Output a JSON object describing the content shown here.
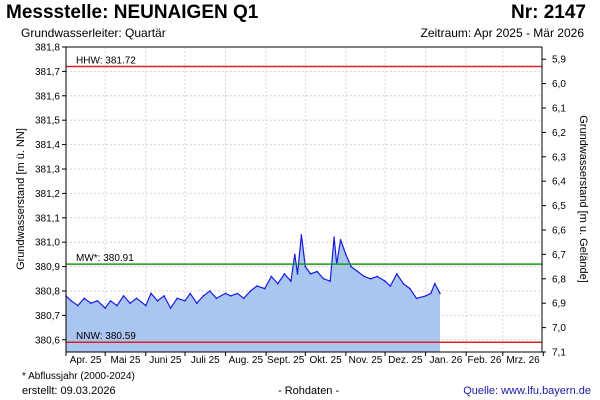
{
  "header": {
    "title": "Messstelle: NEUNAIGEN Q1",
    "number": "Nr: 2147",
    "aquifer": "Grundwasserleiter: Quartär",
    "period": "Zeitraum: Apr 2025 - Mär 2026"
  },
  "footer": {
    "footnote": "* Abflussjahr (2000-2024)",
    "created": "erstellt:  09.03.2026",
    "rawdata": "- Rohdaten -",
    "source": "Quelle: www.lfu.bayern.de"
  },
  "chart_data": {
    "type": "area",
    "ylabel_left": "Grundwasserstand [m ü. NN]",
    "ylabel_right": "Grundwasserstand [m u. Gelände]",
    "ylim": [
      380.55,
      381.8
    ],
    "yticks_left": [
      "381,8",
      "381,7",
      "381,6",
      "381,5",
      "381,4",
      "381,3",
      "381,2",
      "381,1",
      "381,0",
      "380,9",
      "380,8",
      "380,7",
      "380,6"
    ],
    "yticks_right": [
      "5,9",
      "6,0",
      "6,1",
      "6,2",
      "6,3",
      "6,4",
      "6,5",
      "6,6",
      "6,7",
      "6,8",
      "6,9",
      "7,0",
      "7,1"
    ],
    "xlim": [
      "2025-04-01",
      "2026-03-31"
    ],
    "month_labels": [
      "Apr. 25",
      "Mai 25",
      "Juni 25",
      "Juli 25",
      "Aug. 25",
      "Sept. 25",
      "Okt. 25",
      "Nov. 25",
      "Dez. 25",
      "Jan. 26",
      "Feb. 26",
      "Mrz. 26"
    ],
    "grid": true,
    "reference_lines": [
      {
        "label": "HHW: 381.72",
        "value": 381.72,
        "color": "#e02020"
      },
      {
        "label": "MW*: 380.91",
        "value": 380.91,
        "color": "#1a9a1a"
      },
      {
        "label": "NNW: 380.59",
        "value": 380.59,
        "color": "#e02020"
      }
    ],
    "series": [
      {
        "color": "#1a1ae0",
        "fill": "#a9c6f0",
        "x": [
          "2025-04-01",
          "2025-04-05",
          "2025-04-10",
          "2025-04-15",
          "2025-04-20",
          "2025-04-25",
          "2025-05-01",
          "2025-05-05",
          "2025-05-10",
          "2025-05-15",
          "2025-05-20",
          "2025-05-25",
          "2025-06-01",
          "2025-06-05",
          "2025-06-10",
          "2025-06-15",
          "2025-06-20",
          "2025-06-25",
          "2025-07-01",
          "2025-07-05",
          "2025-07-10",
          "2025-07-15",
          "2025-07-20",
          "2025-07-25",
          "2025-08-01",
          "2025-08-05",
          "2025-08-10",
          "2025-08-15",
          "2025-08-20",
          "2025-08-25",
          "2025-08-31",
          "2025-09-05",
          "2025-09-10",
          "2025-09-15",
          "2025-09-20",
          "2025-09-23",
          "2025-09-25",
          "2025-09-28",
          "2025-10-01",
          "2025-10-05",
          "2025-10-10",
          "2025-10-15",
          "2025-10-20",
          "2025-10-23",
          "2025-10-25",
          "2025-10-28",
          "2025-11-01",
          "2025-11-05",
          "2025-11-10",
          "2025-11-15",
          "2025-11-20",
          "2025-11-25",
          "2025-12-01",
          "2025-12-05",
          "2025-12-10",
          "2025-12-15",
          "2025-12-20",
          "2025-12-25",
          "2026-01-01",
          "2026-01-05",
          "2026-01-08",
          "2026-01-12"
        ],
        "y": [
          380.78,
          380.76,
          380.74,
          380.77,
          380.75,
          380.76,
          380.73,
          380.76,
          380.74,
          380.78,
          380.75,
          380.77,
          380.74,
          380.79,
          380.76,
          380.78,
          380.73,
          380.77,
          380.76,
          380.79,
          380.75,
          380.78,
          380.8,
          380.77,
          380.79,
          380.78,
          380.79,
          380.77,
          380.8,
          380.82,
          380.81,
          380.86,
          380.83,
          380.87,
          380.84,
          380.95,
          380.87,
          381.03,
          380.9,
          380.87,
          380.88,
          380.85,
          380.84,
          381.02,
          380.91,
          381.01,
          380.95,
          380.9,
          380.88,
          380.86,
          380.85,
          380.86,
          380.84,
          380.82,
          380.87,
          380.83,
          380.81,
          380.77,
          380.78,
          380.79,
          380.83,
          380.79
        ]
      }
    ]
  }
}
